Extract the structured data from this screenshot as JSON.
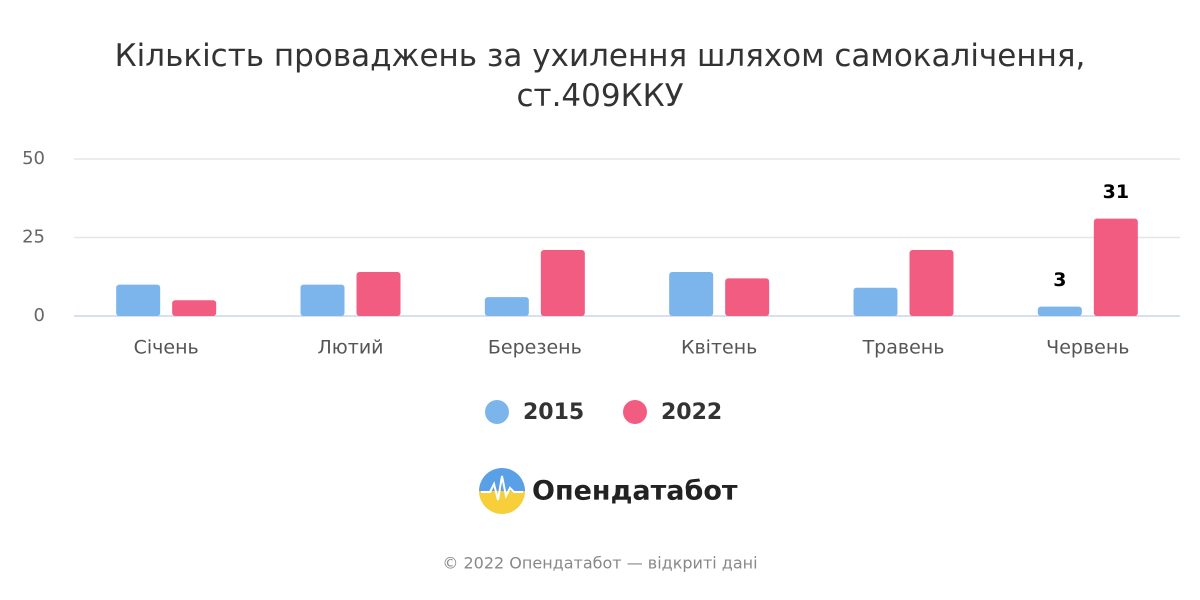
{
  "chart_data": {
    "type": "bar",
    "title": "Кількість проваджень за ухилення шляхом самокалічення, ст.409ККУ",
    "categories": [
      "Січень",
      "Лютий",
      "Березень",
      "Квітень",
      "Травень",
      "Червень"
    ],
    "series": [
      {
        "name": "2015",
        "color": "#7cb5ec",
        "values": [
          10,
          10,
          6,
          14,
          9,
          3
        ],
        "label_shown": [
          false,
          false,
          false,
          false,
          false,
          true
        ]
      },
      {
        "name": "2022",
        "color": "#f15c80",
        "values": [
          5,
          14,
          21,
          12,
          21,
          31
        ],
        "label_shown": [
          false,
          false,
          false,
          false,
          false,
          true
        ]
      }
    ],
    "ylim": [
      0,
      50
    ],
    "yticks": [
      0,
      25,
      50
    ],
    "grid": true,
    "legend": "bottom",
    "logo_text": "Опендатабот",
    "footer": "© 2022 Опендатабот — відкриті дані"
  }
}
